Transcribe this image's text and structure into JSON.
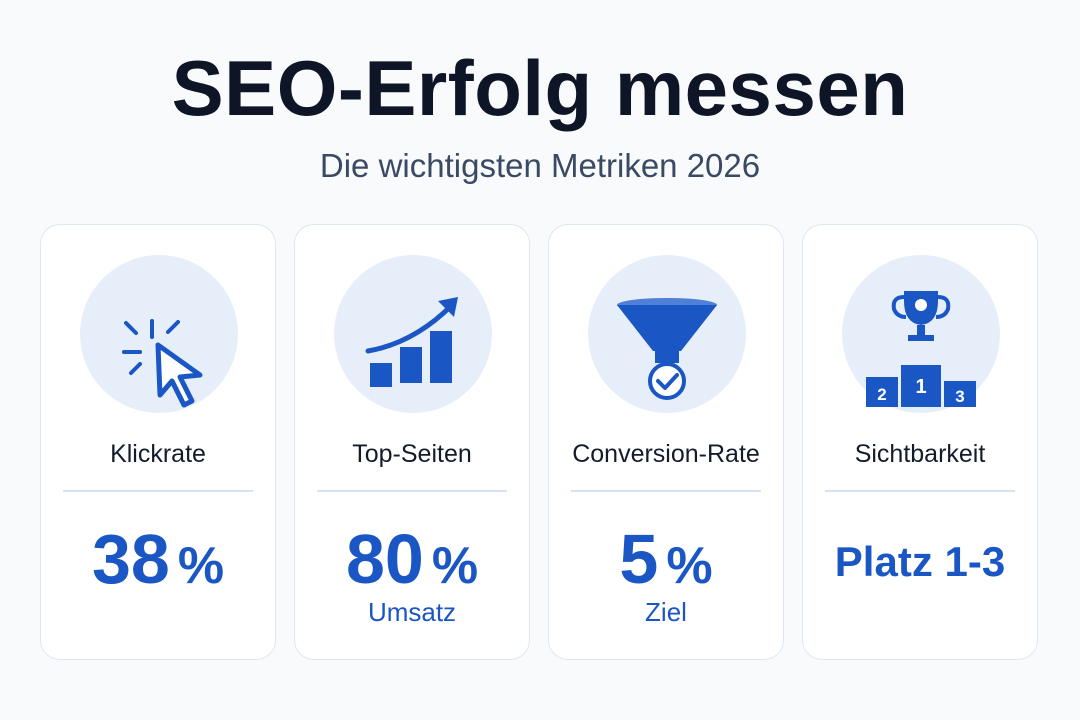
{
  "header": {
    "title": "SEO-Erfolg messen",
    "subtitle": "Die wichtigsten Metriken 2026"
  },
  "colors": {
    "accent": "#1a56c4",
    "icon_background": "#e6eefa",
    "title": "#0d1526"
  },
  "cards": [
    {
      "icon": "cursor-click-icon",
      "label": "Klickrate",
      "value": "38",
      "unit": "%",
      "sub": ""
    },
    {
      "icon": "growth-chart-icon",
      "label": "Top-Seiten",
      "value": "80",
      "unit": "%",
      "sub": "Umsatz"
    },
    {
      "icon": "funnel-check-icon",
      "label": "Conversion-Rate",
      "value": "5",
      "unit": "%",
      "sub": "Ziel"
    },
    {
      "icon": "trophy-podium-icon",
      "label": "Sichtbarkeit",
      "value": "Platz 1-3",
      "unit": "",
      "sub": ""
    }
  ],
  "podium": {
    "first": "1",
    "second": "2",
    "third": "3"
  }
}
